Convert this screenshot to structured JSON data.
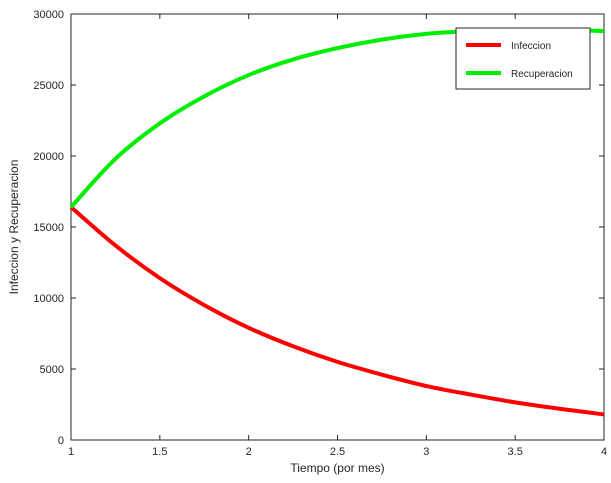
{
  "chart_data": {
    "type": "line",
    "title": "",
    "xlabel": "Tiempo (por mes)",
    "ylabel": "Infeccion y Recuperacion",
    "xlim": [
      1,
      4
    ],
    "ylim": [
      0,
      30000
    ],
    "grid": false,
    "legend_position": "top-right",
    "x_ticks": [
      {
        "value": 1,
        "label": "1"
      },
      {
        "value": 1.5,
        "label": "1.5"
      },
      {
        "value": 2,
        "label": "2"
      },
      {
        "value": 2.5,
        "label": "2.5"
      },
      {
        "value": 3,
        "label": "3"
      },
      {
        "value": 3.5,
        "label": "3.5"
      },
      {
        "value": 4,
        "label": "4"
      }
    ],
    "y_ticks": [
      {
        "value": 0,
        "label": "0"
      },
      {
        "value": 5000,
        "label": "5000"
      },
      {
        "value": 10000,
        "label": "10000"
      },
      {
        "value": 15000,
        "label": "15000"
      },
      {
        "value": 20000,
        "label": "20000"
      },
      {
        "value": 25000,
        "label": "25000"
      },
      {
        "value": 30000,
        "label": "30000"
      }
    ],
    "x": [
      1,
      1.25,
      1.5,
      1.75,
      2,
      2.25,
      2.5,
      2.75,
      3,
      3.25,
      3.5,
      3.75,
      4
    ],
    "series": [
      {
        "name": "Infeccion",
        "color": "#ff0000",
        "values": [
          16400,
          13700,
          11400,
          9500,
          7900,
          6600,
          5500,
          4600,
          3800,
          3200,
          2650,
          2200,
          1800
        ]
      },
      {
        "name": "Recuperacion",
        "color": "#00ee00",
        "values": [
          16400,
          19800,
          22300,
          24200,
          25700,
          26800,
          27600,
          28200,
          28600,
          28800,
          28900,
          28900,
          28800
        ]
      }
    ]
  }
}
